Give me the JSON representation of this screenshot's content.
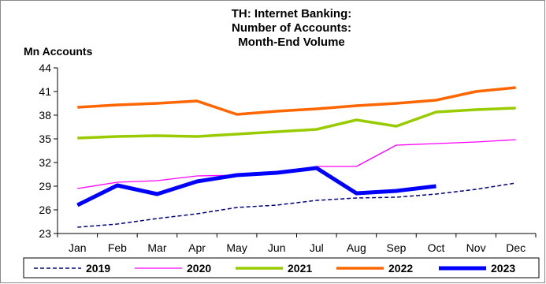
{
  "chart_data": {
    "type": "line",
    "title": [
      "TH: Internet Banking:",
      "Number of Accounts:",
      "Month-End Volume"
    ],
    "ylabel": "Mn Accounts",
    "xlabel": "",
    "categories": [
      "Jan",
      "Feb",
      "Mar",
      "Apr",
      "May",
      "Jun",
      "Jul",
      "Aug",
      "Sep",
      "Oct",
      "Nov",
      "Dec"
    ],
    "yticks": [
      "23",
      "26",
      "29",
      "32",
      "35",
      "38",
      "41",
      "44"
    ],
    "ylim": [
      23,
      44
    ],
    "grid": false,
    "legend_position": "bottom",
    "series": [
      {
        "name": "2019",
        "color": "#000080",
        "style": "dashed",
        "values": [
          23.8,
          24.2,
          24.9,
          25.5,
          26.3,
          26.6,
          27.2,
          27.5,
          27.6,
          28.0,
          28.6,
          29.4
        ]
      },
      {
        "name": "2020",
        "color": "#ff00ff",
        "style": "thin",
        "values": [
          28.7,
          29.5,
          29.7,
          30.3,
          30.4,
          30.7,
          31.5,
          31.5,
          34.2,
          34.4,
          34.6,
          34.9
        ]
      },
      {
        "name": "2021",
        "color": "#99cc00",
        "style": "medium",
        "values": [
          35.1,
          35.3,
          35.4,
          35.3,
          35.6,
          35.9,
          36.2,
          37.4,
          36.6,
          38.4,
          38.7,
          38.9
        ]
      },
      {
        "name": "2022",
        "color": "#ff6600",
        "style": "medium",
        "values": [
          39.0,
          39.3,
          39.5,
          39.8,
          38.1,
          38.5,
          38.8,
          39.2,
          39.5,
          39.9,
          41.0,
          41.5
        ]
      },
      {
        "name": "2023",
        "color": "#0000ff",
        "style": "thick",
        "values": [
          26.6,
          29.1,
          28.0,
          29.6,
          30.4,
          30.7,
          31.3,
          28.1,
          28.4,
          29.0,
          null,
          null
        ]
      }
    ]
  }
}
